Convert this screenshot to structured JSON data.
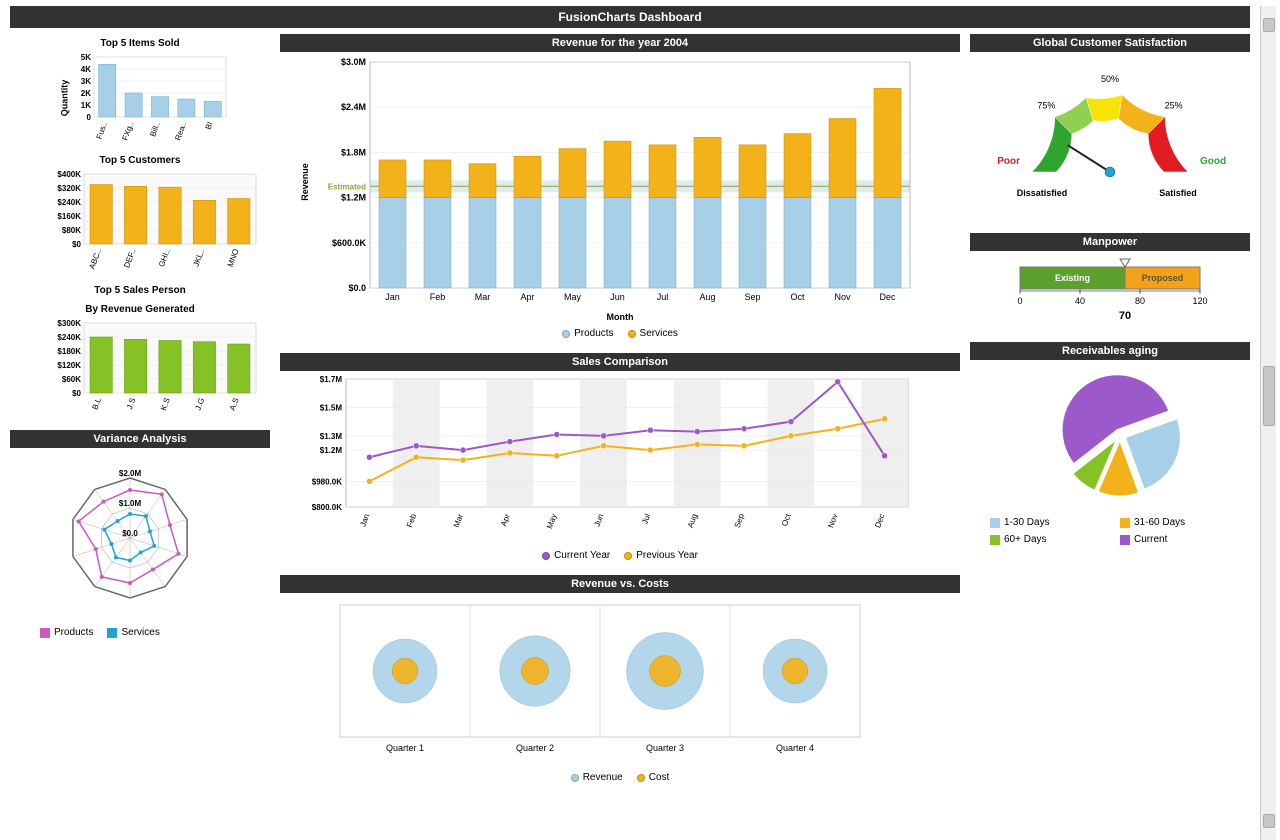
{
  "page": {
    "title": "FusionCharts Dashboard"
  },
  "left": {
    "top5items": {
      "title": "Top 5 Items Sold",
      "ylabel": "Quantity",
      "categories": [
        "Fus..",
        "FXg..",
        "Bill..",
        "Rea..",
        "BI"
      ],
      "values": [
        4400,
        2000,
        1700,
        1500,
        1300
      ],
      "ylim": [
        0,
        5000
      ],
      "yticks": [
        0,
        1000,
        2000,
        3000,
        4000,
        5000
      ],
      "ytick_labels": [
        "0",
        "1K",
        "2K",
        "3K",
        "4K",
        "5K"
      ],
      "bar_color": "#a8cfe8",
      "bar_border": "#6fa9d0",
      "grid_color": "#e4e4e4",
      "bg": "#ffffff",
      "label_fontsize": 8
    },
    "top5customers": {
      "title": "Top 5 Customers",
      "categories": [
        "ABC..",
        "DEF..",
        "GHI..",
        "JKL..",
        "MNO"
      ],
      "values": [
        340000,
        330000,
        325000,
        250000,
        260000
      ],
      "ylim": [
        0,
        400000
      ],
      "yticks": [
        0,
        80000,
        160000,
        240000,
        320000,
        400000
      ],
      "ytick_labels": [
        "$0",
        "$80K",
        "$160K",
        "$240K",
        "$320K",
        "$400K"
      ],
      "bar_color": "#f4b21a",
      "bar_border": "#c78800",
      "grid_color": "#e6e6e6",
      "bg": "#fafafa",
      "label_fontsize": 8
    },
    "top5sales": {
      "title": "Top 5 Sales Person",
      "subtitle": "By Revenue Generated",
      "categories": [
        "B.L",
        "J.S",
        "K.S",
        "J.G",
        "A.S"
      ],
      "values": [
        240000,
        230000,
        225000,
        220000,
        210000
      ],
      "ylim": [
        0,
        300000
      ],
      "yticks": [
        0,
        60000,
        120000,
        180000,
        240000,
        300000
      ],
      "ytick_labels": [
        "$0",
        "$60K",
        "$120K",
        "$180K",
        "$240K",
        "$300K"
      ],
      "bar_color": "#85c226",
      "bar_border": "#5e9a00",
      "grid_color": "#e6e6e6",
      "bg": "#fafafa",
      "label_fontsize": 8
    },
    "variance": {
      "title": "Variance Analysis",
      "rings": [
        "$0.0",
        "$1.0M",
        "$2.0M"
      ],
      "ring_values": [
        0,
        1000000,
        2000000
      ],
      "colors": {
        "products": "#c959c3",
        "services": "#1fa4d6",
        "grid": "#b0b0b0",
        "bg": "#ffffff"
      },
      "legend": [
        {
          "label": "Products",
          "color": "#c959c3"
        },
        {
          "label": "Services",
          "color": "#1fa4d6"
        }
      ],
      "spokes": 10,
      "products": [
        1.6,
        1.8,
        1.4,
        1.7,
        1.3,
        1.5,
        1.6,
        1.2,
        1.8,
        1.5
      ],
      "services": [
        0.8,
        0.9,
        0.7,
        0.85,
        0.6,
        0.75,
        0.8,
        0.65,
        0.9,
        0.7
      ]
    }
  },
  "center": {
    "revenue": {
      "title": "Revenue for the year 2004",
      "xlabel": "Month",
      "ylabel": "Revenue",
      "categories": [
        "Jan",
        "Feb",
        "Mar",
        "Apr",
        "May",
        "Jun",
        "Jul",
        "Aug",
        "Sep",
        "Oct",
        "Nov",
        "Dec"
      ],
      "products": [
        1200000,
        1200000,
        1200000,
        1200000,
        1200000,
        1200000,
        1200000,
        1200000,
        1200000,
        1200000,
        1200000,
        1200000
      ],
      "services": [
        500000,
        500000,
        450000,
        550000,
        650000,
        750000,
        700000,
        800000,
        700000,
        850000,
        1050000,
        1450000
      ],
      "ylim": [
        0,
        3000000
      ],
      "yticks": [
        0,
        600000,
        1200000,
        1800000,
        2400000,
        3000000
      ],
      "ytick_labels": [
        "$0.0",
        "$600.0K",
        "$1.2M",
        "$1.8M",
        "$2.4M",
        "$3.0M"
      ],
      "estimated_label": "Estimated",
      "estimated_value": 1350000,
      "colors": {
        "products": "#a8cfe8",
        "products_border": "#6fa9d0",
        "services": "#f4b21a",
        "services_border": "#c78800",
        "grid": "#e6e6e6",
        "bg": "#ffffff",
        "band": "#b9d9e8",
        "estimated_line": "#9aa03a"
      },
      "legend": [
        {
          "label": "Products",
          "color": "#a8cfe8"
        },
        {
          "label": "Services",
          "color": "#f4b21a"
        }
      ],
      "title_fontsize": 11,
      "label_fontsize": 9
    },
    "sales_comparison": {
      "title": "Sales Comparison",
      "categories": [
        "Jan",
        "Feb",
        "Mar",
        "Apr",
        "May",
        "Jun",
        "Jul",
        "Aug",
        "Sep",
        "Oct",
        "Nov",
        "Dec"
      ],
      "current": [
        1150000,
        1230000,
        1200000,
        1260000,
        1310000,
        1300000,
        1340000,
        1330000,
        1350000,
        1400000,
        1680000,
        1160000
      ],
      "previous": [
        980000,
        1150000,
        1130000,
        1180000,
        1160000,
        1230000,
        1200000,
        1240000,
        1230000,
        1300000,
        1350000,
        1420000
      ],
      "ylim": [
        800000,
        1700000
      ],
      "yticks": [
        800000,
        980000,
        1200000,
        1300000,
        1500000,
        1700000
      ],
      "ytick_labels": [
        "$800.0K",
        "$980.0K",
        "$1.2M",
        "$1.3M",
        "$1.5M",
        "$1.7M"
      ],
      "colors": {
        "current": "#9b59c9",
        "previous": "#f4b21a",
        "grid": "#e6e6e6",
        "alt_band": "#efefef",
        "bg": "#ffffff"
      },
      "legend": [
        {
          "label": "Current Year",
          "color": "#9b59c9"
        },
        {
          "label": "Previous Year",
          "color": "#f4b21a"
        }
      ],
      "line_width": 2,
      "marker_radius": 3
    },
    "revenue_costs": {
      "title": "Revenue vs. Costs",
      "categories": [
        "Quarter 1",
        "Quarter 2",
        "Quarter 3",
        "Quarter 4"
      ],
      "revenue": [
        100,
        110,
        120,
        100
      ],
      "cost": [
        40,
        42,
        48,
        40
      ],
      "colors": {
        "revenue": "#a8cfe8",
        "cost": "#f4b21a",
        "border": "#cccccc",
        "bg": "#ffffff"
      },
      "legend": [
        {
          "label": "Revenue",
          "color": "#a8cfe8"
        },
        {
          "label": "Cost",
          "color": "#f4b21a"
        }
      ]
    }
  },
  "right": {
    "satisfaction": {
      "title": "Global Customer Satisfaction",
      "ticks": [
        "25%",
        "50%",
        "75%"
      ],
      "labels": {
        "poor": "Poor",
        "good": "Good",
        "dissatisfied": "Dissatisfied",
        "satisfied": "Satisfied"
      },
      "value_pct": 82,
      "zones": [
        {
          "from": 0,
          "to": 25,
          "color": "#e01b24"
        },
        {
          "from": 25,
          "to": 45,
          "color": "#f4b21a"
        },
        {
          "from": 45,
          "to": 60,
          "color": "#f7e400"
        },
        {
          "from": 60,
          "to": 75,
          "color": "#8fd14f"
        },
        {
          "from": 75,
          "to": 100,
          "color": "#2ea52e"
        }
      ],
      "needle_color": "#222222",
      "hub_color": "#1fa4d6",
      "bg": "#ffffff"
    },
    "manpower": {
      "title": "Manpower",
      "existing_label": "Existing",
      "proposed_label": "Proposed",
      "range": [
        0,
        120
      ],
      "ticks": [
        0,
        40,
        80,
        120
      ],
      "split": 70,
      "value": 70,
      "colors": {
        "existing": "#5aa02c",
        "proposed": "#f4a11a",
        "pointer": "#666666",
        "border": "#7a7a7a",
        "bg": "#ffffff"
      }
    },
    "receivables": {
      "title": "Receivables aging",
      "slices": [
        {
          "label": "1-30 Days",
          "value": 25,
          "color": "#a8cfe8"
        },
        {
          "label": "31-60 Days",
          "value": 12,
          "color": "#f4b21a"
        },
        {
          "label": "60+ Days",
          "value": 8,
          "color": "#85c226"
        },
        {
          "label": "Current",
          "value": 55,
          "color": "#9b59c9"
        }
      ],
      "bg": "#ffffff",
      "stroke": "#ffffff"
    }
  }
}
